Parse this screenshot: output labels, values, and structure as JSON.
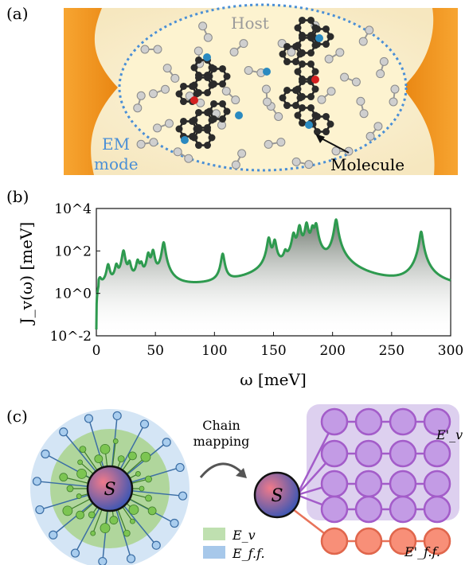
{
  "panel_a": {
    "label": "(a)",
    "host_label": "Host",
    "em_label_line1": "EM",
    "em_label_line2": "mode",
    "molecule_label": "Molecule"
  },
  "panel_b": {
    "label": "(b)",
    "ylabel": "J_v(ω) [meV]",
    "xlabel": "ω [meV]",
    "y_ticks": [
      "10^-2",
      "10^0",
      "10^2",
      "10^4"
    ],
    "x_ticks": [
      "0",
      "50",
      "100",
      "150",
      "200",
      "250",
      "300"
    ]
  },
  "panel_c": {
    "label": "(c)",
    "arrow_text_line1": "Chain",
    "arrow_text_line2": "mapping",
    "system_symbol": "S",
    "legend_v": "E_v",
    "legend_ff": "E_f.f.",
    "chain_v_label": "E'_v",
    "chain_ff_label": "E'_f.f."
  },
  "colors": {
    "green_line": "#2e9a4f",
    "em_orange": "#f39a1f",
    "host_dots": "#4a8fd6",
    "chain_purple": "#b48ad8",
    "chain_orange": "#f4876c",
    "env_green": "#9fd17f",
    "env_blue": "#bcd7ef"
  },
  "chart_data": {
    "type": "line",
    "xlabel": "ω [meV]",
    "ylabel": "J_v(ω) [meV]",
    "xlim": [
      0,
      300
    ],
    "ylim": [
      0.01,
      10000
    ],
    "yscale": "log",
    "peaks_x": [
      3,
      10,
      17,
      23,
      28,
      35,
      38,
      44,
      48,
      57,
      107,
      146,
      151,
      160,
      167,
      172,
      178,
      183,
      186,
      203,
      275
    ],
    "peaks_y": [
      2.5,
      20,
      18,
      100,
      25,
      30,
      20,
      70,
      100,
      250,
      70,
      400,
      300,
      60,
      600,
      1500,
      2000,
      1200,
      1800,
      3000,
      800
    ]
  }
}
